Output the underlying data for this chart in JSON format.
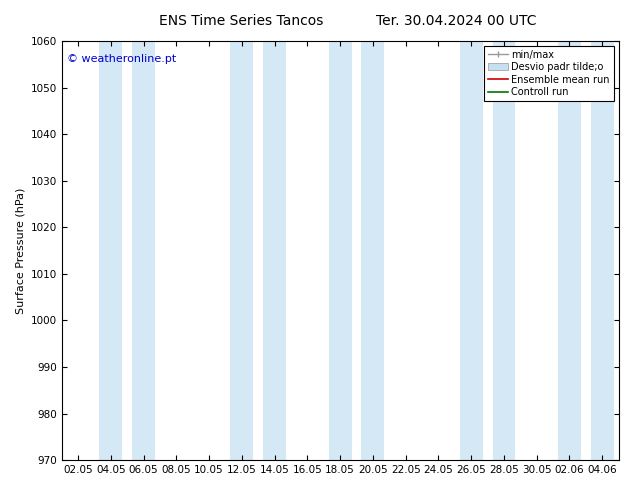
{
  "title_left": "ENS Time Series Tancos",
  "title_right": "Ter. 30.04.2024 00 UTC",
  "ylabel": "Surface Pressure (hPa)",
  "ylim": [
    970,
    1060
  ],
  "yticks": [
    970,
    980,
    990,
    1000,
    1010,
    1020,
    1030,
    1040,
    1050,
    1060
  ],
  "xtick_labels": [
    "02.05",
    "04.05",
    "06.05",
    "08.05",
    "10.05",
    "12.05",
    "14.05",
    "16.05",
    "18.05",
    "20.05",
    "22.05",
    "24.05",
    "26.05",
    "28.05",
    "30.05",
    "02.06",
    "04.06"
  ],
  "watermark": "© weatheronline.pt",
  "watermark_color": "#0000cc",
  "background_color": "#ffffff",
  "plot_bg_color": "#ffffff",
  "band_color": "#d5e8f5",
  "legend_labels": [
    "min/max",
    "Desvio padr tilde;o",
    "Ensemble mean run",
    "Controll run"
  ],
  "legend_line_color": "#999999",
  "legend_band_color": "#c8dff0",
  "legend_mean_color": "#cc0000",
  "legend_control_color": "#007700",
  "title_fontsize": 10,
  "axis_fontsize": 8,
  "tick_fontsize": 7.5,
  "watermark_fontsize": 8
}
